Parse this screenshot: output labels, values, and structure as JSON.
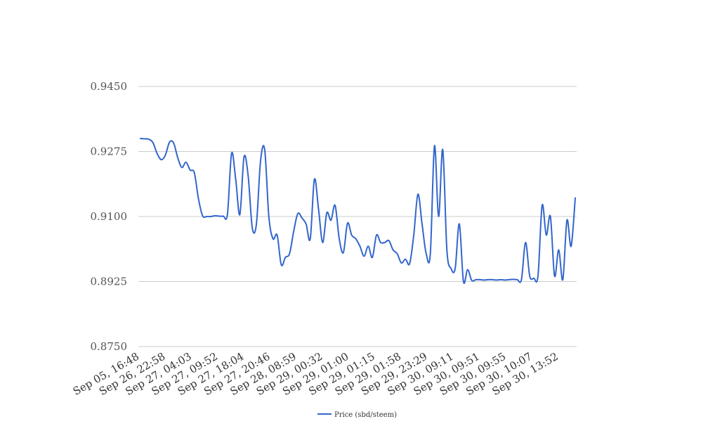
{
  "chart_data": {
    "type": "line",
    "title": "",
    "xlabel": "",
    "ylabel": "",
    "ylim": [
      0.875,
      0.945
    ],
    "yticks": [
      "0.9450",
      "0.9275",
      "0.9100",
      "0.8925",
      "0.8750"
    ],
    "xtick_labels": [
      "Sep 05, 16:48",
      "Sep 26, 22:58",
      "Sep 27, 04:03",
      "Sep 27, 09:52",
      "Sep 27, 18:04",
      "Sep 27, 20:46",
      "Sep 28, 08:59",
      "Sep 29, 00:32",
      "Sep 29, 01:00",
      "Sep 29, 01:15",
      "Sep 29, 01:58",
      "Sep 29, 23:29",
      "Sep 30, 09:11",
      "Sep 30, 09:51",
      "Sep 30, 09:55",
      "Sep 30, 10:07",
      "Sep 30, 13:52"
    ],
    "grid": true,
    "legend_position": "bottom",
    "series": [
      {
        "name": "Price (sbd/steem)",
        "color": "#3366cc",
        "values": [
          0.931,
          0.9309,
          0.9308,
          0.9299,
          0.927,
          0.9253,
          0.9265,
          0.93,
          0.9298,
          0.9258,
          0.9232,
          0.9246,
          0.9225,
          0.9218,
          0.9148,
          0.9102,
          0.91,
          0.91,
          0.9102,
          0.9101,
          0.9101,
          0.9106,
          0.927,
          0.92,
          0.9105,
          0.926,
          0.921,
          0.907,
          0.908,
          0.925,
          0.928,
          0.91,
          0.904,
          0.905,
          0.897,
          0.899,
          0.9,
          0.906,
          0.9108,
          0.9096,
          0.908,
          0.904,
          0.92,
          0.912,
          0.903,
          0.911,
          0.909,
          0.913,
          0.904,
          0.9003,
          0.9082,
          0.905,
          0.904,
          0.902,
          0.8993,
          0.902,
          0.899,
          0.905,
          0.903,
          0.903,
          0.9035,
          0.901,
          0.9,
          0.8975,
          0.8985,
          0.8973,
          0.905,
          0.916,
          0.908,
          0.9,
          0.9,
          0.929,
          0.91,
          0.928,
          0.901,
          0.896,
          0.896,
          0.908,
          0.8925,
          0.8957,
          0.8928,
          0.893,
          0.893,
          0.8929,
          0.893,
          0.893,
          0.8929,
          0.893,
          0.8929,
          0.893,
          0.8931,
          0.893,
          0.893,
          0.903,
          0.894,
          0.8934,
          0.894,
          0.913,
          0.905,
          0.91,
          0.894,
          0.901,
          0.893,
          0.909,
          0.902,
          0.915
        ]
      }
    ]
  }
}
